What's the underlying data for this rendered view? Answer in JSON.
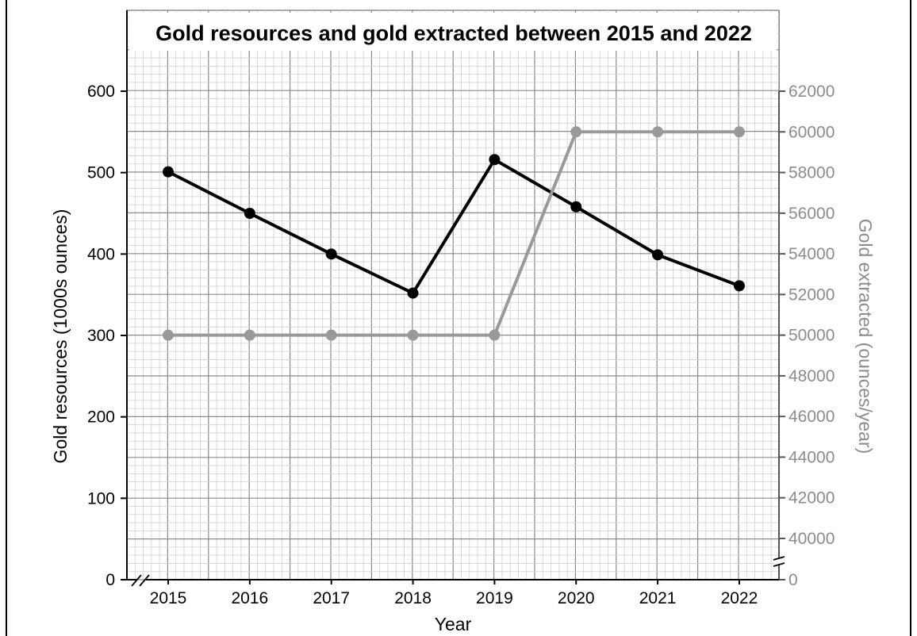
{
  "chart_data": {
    "type": "line",
    "title": "Gold resources and gold extracted between 2015 and 2022",
    "xlabel": "Year",
    "ylabel_left": "Gold resources (1000s ounces)",
    "ylabel_right": "Gold extracted (ounces/year)",
    "categories": [
      "2015",
      "2016",
      "2017",
      "2018",
      "2019",
      "2020",
      "2021",
      "2022"
    ],
    "ylim_left": [
      0,
      650
    ],
    "yticks_left": [
      "0",
      "100",
      "200",
      "300",
      "400",
      "500",
      "600"
    ],
    "ylim_right": [
      38000,
      64000
    ],
    "yticks_right": [
      "40000",
      "42000",
      "44000",
      "46000",
      "48000",
      "50000",
      "52000",
      "54000",
      "56000",
      "58000",
      "60000",
      "62000"
    ],
    "yticks_right_zero": "0",
    "axis_breaks": [
      "left-x-axis",
      "right-y-axis"
    ],
    "grid": true,
    "series": [
      {
        "axis": "left",
        "color": "#000000",
        "values": [
          501,
          450,
          400,
          352,
          516,
          458,
          399,
          361
        ]
      },
      {
        "axis": "right",
        "color": "#999999",
        "values": [
          50000,
          50000,
          50000,
          50000,
          50000,
          60000,
          60000,
          60000
        ]
      }
    ]
  }
}
